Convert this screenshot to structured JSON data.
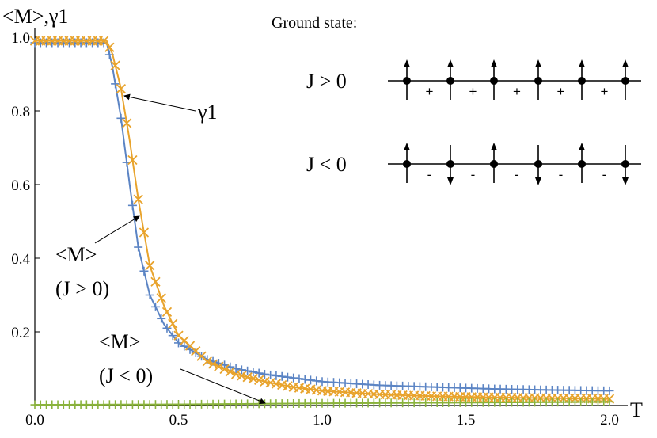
{
  "chart_data": {
    "type": "line",
    "xlabel": "T",
    "ylabel": "<M>,γ1",
    "xlim": [
      0,
      2.0
    ],
    "ylim": [
      0,
      1.0
    ],
    "x_ticks": [
      "0.0",
      "0.5",
      "1.0",
      "1.5",
      "2.0"
    ],
    "y_ticks": [
      "0.2",
      "0.4",
      "0.6",
      "0.8",
      "1.0"
    ],
    "grid": false,
    "series": [
      {
        "marker": "plus",
        "color": "#5b84c4",
        "x": [
          0.0,
          0.25,
          0.27,
          0.3,
          0.33,
          0.36,
          0.4,
          0.45,
          0.5,
          0.6,
          0.7,
          0.8,
          0.9,
          1.0,
          1.2,
          1.4,
          1.6,
          1.8,
          2.0
        ],
        "y": [
          0.985,
          0.985,
          0.92,
          0.78,
          0.6,
          0.43,
          0.3,
          0.22,
          0.17,
          0.125,
          0.1,
          0.085,
          0.075,
          0.065,
          0.055,
          0.05,
          0.045,
          0.042,
          0.04
        ]
      },
      {
        "marker": "cross",
        "color": "#e8a32c",
        "x": [
          0.0,
          0.25,
          0.27,
          0.3,
          0.33,
          0.36,
          0.4,
          0.45,
          0.5,
          0.6,
          0.7,
          0.8,
          0.9,
          1.0,
          1.2,
          1.4,
          1.6,
          1.8,
          2.0
        ],
        "y": [
          0.99,
          0.99,
          0.955,
          0.86,
          0.72,
          0.56,
          0.38,
          0.27,
          0.19,
          0.12,
          0.085,
          0.065,
          0.05,
          0.04,
          0.03,
          0.025,
          0.022,
          0.02,
          0.018
        ]
      },
      {
        "marker": "plus",
        "color": "#8ab33c",
        "x": [
          0.0,
          0.5,
          1.0,
          1.5,
          2.0
        ],
        "y": [
          0.002,
          0.003,
          0.006,
          0.008,
          0.01
        ]
      }
    ],
    "annotations": [
      {
        "text": "γ1",
        "x": 0.34,
        "y": 0.8
      },
      {
        "lines": [
          "<M>",
          "(J > 0)"
        ],
        "x": 0.31,
        "y": 0.52
      },
      {
        "lines": [
          "<M>",
          "(J < 0)"
        ],
        "x": 0.8,
        "y": 0.005
      }
    ]
  },
  "ground_state": {
    "title": "Ground state:",
    "rows": [
      {
        "label": "J > 0",
        "spins": [
          "up",
          "up",
          "up",
          "up",
          "up",
          "up"
        ],
        "signs": [
          "+",
          "+",
          "+",
          "+",
          "+"
        ]
      },
      {
        "label": "J < 0",
        "spins": [
          "up",
          "down",
          "up",
          "down",
          "up",
          "down"
        ],
        "signs": [
          "-",
          "-",
          "-",
          "-",
          "-"
        ]
      }
    ]
  }
}
